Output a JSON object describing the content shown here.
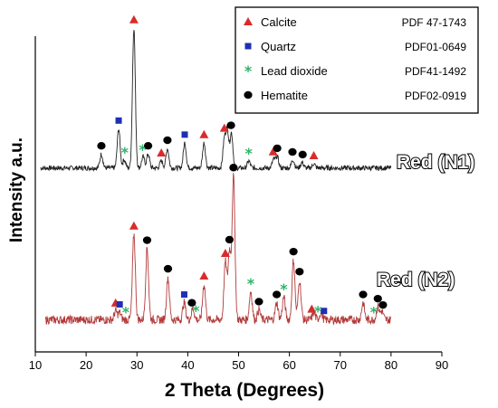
{
  "chart_data": {
    "type": "line",
    "xlabel": "2 Theta (Degrees)",
    "ylabel": "Intensity a.u.",
    "xlim": [
      10,
      90
    ],
    "xticks": [
      "10",
      "20",
      "30",
      "40",
      "50",
      "60",
      "70",
      "80",
      "90"
    ],
    "grid": false,
    "legend_placement": "top-right",
    "series": [
      {
        "name": "Red (N1)",
        "color": "#222222",
        "baseline": 0.06,
        "peaks": [
          [
            23,
            0.1
          ],
          [
            26.4,
            0.28
          ],
          [
            27.5,
            0.06
          ],
          [
            29.4,
            1.0
          ],
          [
            31.2,
            0.08
          ],
          [
            32.2,
            0.1
          ],
          [
            34.8,
            0.05
          ],
          [
            36.0,
            0.14
          ],
          [
            39.4,
            0.18
          ],
          [
            43.2,
            0.18
          ],
          [
            47.2,
            0.2
          ],
          [
            47.8,
            0.26
          ],
          [
            48.6,
            0.25
          ],
          [
            52.0,
            0.05
          ],
          [
            56.9,
            0.06
          ],
          [
            57.6,
            0.08
          ],
          [
            60.7,
            0.06
          ],
          [
            62.5,
            0.04
          ],
          [
            64.8,
            0.03
          ]
        ]
      },
      {
        "name": "Red (N2)",
        "color": "#b33a3a",
        "baseline": 0.06,
        "peaks": [
          [
            25.8,
            0.06
          ],
          [
            26.6,
            0.05
          ],
          [
            29.4,
            0.6
          ],
          [
            32.0,
            0.5
          ],
          [
            36.1,
            0.3
          ],
          [
            39.3,
            0.12
          ],
          [
            41.0,
            0.08
          ],
          [
            43.2,
            0.25
          ],
          [
            47.4,
            0.4
          ],
          [
            48.2,
            0.48
          ],
          [
            49.0,
            1.0
          ],
          [
            52.4,
            0.2
          ],
          [
            54.0,
            0.07
          ],
          [
            57.5,
            0.12
          ],
          [
            58.9,
            0.16
          ],
          [
            60.8,
            0.42
          ],
          [
            62.0,
            0.28
          ],
          [
            64.8,
            0.05
          ],
          [
            66.2,
            0.05
          ],
          [
            74.5,
            0.12
          ],
          [
            77.4,
            0.09
          ],
          [
            78.2,
            0.06
          ]
        ]
      }
    ],
    "sample_labels": [
      "Red (N1)",
      "Red (N2)"
    ],
    "legend": [
      {
        "label": "Calcite",
        "pdf": "PDF 47-1743",
        "symbol": "triangle",
        "color": "#d92b2b"
      },
      {
        "label": "Quartz",
        "pdf": "PDF01-0649",
        "symbol": "square",
        "color": "#1f2fb3"
      },
      {
        "label": "Lead dioxide",
        "pdf": "PDF41-1492",
        "symbol": "asterisk",
        "color": "#2fb36a"
      },
      {
        "label": "Hematite",
        "pdf": "PDF02-0919",
        "symbol": "circle",
        "color": "#000000"
      }
    ],
    "markers": [
      {
        "series": 0,
        "x": 23.0,
        "symbol": "circle"
      },
      {
        "series": 0,
        "x": 26.4,
        "symbol": "square"
      },
      {
        "series": 0,
        "x": 27.6,
        "symbol": "asterisk"
      },
      {
        "series": 0,
        "x": 29.4,
        "symbol": "triangle"
      },
      {
        "series": 0,
        "x": 31.1,
        "symbol": "asterisk"
      },
      {
        "series": 0,
        "x": 32.2,
        "symbol": "circle"
      },
      {
        "series": 0,
        "x": 34.8,
        "symbol": "triangle"
      },
      {
        "series": 0,
        "x": 36.0,
        "symbol": "circle"
      },
      {
        "series": 0,
        "x": 39.4,
        "symbol": "square"
      },
      {
        "series": 0,
        "x": 43.2,
        "symbol": "triangle"
      },
      {
        "series": 0,
        "x": 47.2,
        "symbol": "triangle"
      },
      {
        "series": 0,
        "x": 48.5,
        "symbol": "circle"
      },
      {
        "series": 0,
        "x": 52.0,
        "symbol": "asterisk"
      },
      {
        "series": 0,
        "x": 56.8,
        "symbol": "triangle"
      },
      {
        "series": 0,
        "x": 57.6,
        "symbol": "circle"
      },
      {
        "series": 0,
        "x": 60.6,
        "symbol": "circle"
      },
      {
        "series": 0,
        "x": 62.6,
        "symbol": "circle"
      },
      {
        "series": 0,
        "x": 64.8,
        "symbol": "triangle"
      },
      {
        "series": 1,
        "x": 25.8,
        "symbol": "triangle"
      },
      {
        "series": 1,
        "x": 26.6,
        "symbol": "square"
      },
      {
        "series": 1,
        "x": 27.8,
        "symbol": "asterisk"
      },
      {
        "series": 1,
        "x": 29.4,
        "symbol": "triangle"
      },
      {
        "series": 1,
        "x": 32.0,
        "symbol": "circle"
      },
      {
        "series": 1,
        "x": 36.1,
        "symbol": "circle"
      },
      {
        "series": 1,
        "x": 39.3,
        "symbol": "square"
      },
      {
        "series": 1,
        "x": 40.8,
        "symbol": "circle"
      },
      {
        "series": 1,
        "x": 41.6,
        "symbol": "asterisk"
      },
      {
        "series": 1,
        "x": 43.2,
        "symbol": "triangle"
      },
      {
        "series": 1,
        "x": 47.4,
        "symbol": "triangle"
      },
      {
        "series": 1,
        "x": 48.2,
        "symbol": "circle"
      },
      {
        "series": 1,
        "x": 49.0,
        "symbol": "circle"
      },
      {
        "series": 1,
        "x": 52.4,
        "symbol": "asterisk"
      },
      {
        "series": 1,
        "x": 54.0,
        "symbol": "circle"
      },
      {
        "series": 1,
        "x": 57.5,
        "symbol": "circle"
      },
      {
        "series": 1,
        "x": 58.9,
        "symbol": "asterisk"
      },
      {
        "series": 1,
        "x": 60.8,
        "symbol": "circle"
      },
      {
        "series": 1,
        "x": 62.0,
        "symbol": "circle"
      },
      {
        "series": 1,
        "x": 64.4,
        "symbol": "triangle"
      },
      {
        "series": 1,
        "x": 65.6,
        "symbol": "asterisk"
      },
      {
        "series": 1,
        "x": 66.8,
        "symbol": "square"
      },
      {
        "series": 1,
        "x": 74.5,
        "symbol": "circle"
      },
      {
        "series": 1,
        "x": 76.6,
        "symbol": "asterisk"
      },
      {
        "series": 1,
        "x": 77.4,
        "symbol": "circle"
      },
      {
        "series": 1,
        "x": 78.4,
        "symbol": "circle"
      }
    ]
  }
}
